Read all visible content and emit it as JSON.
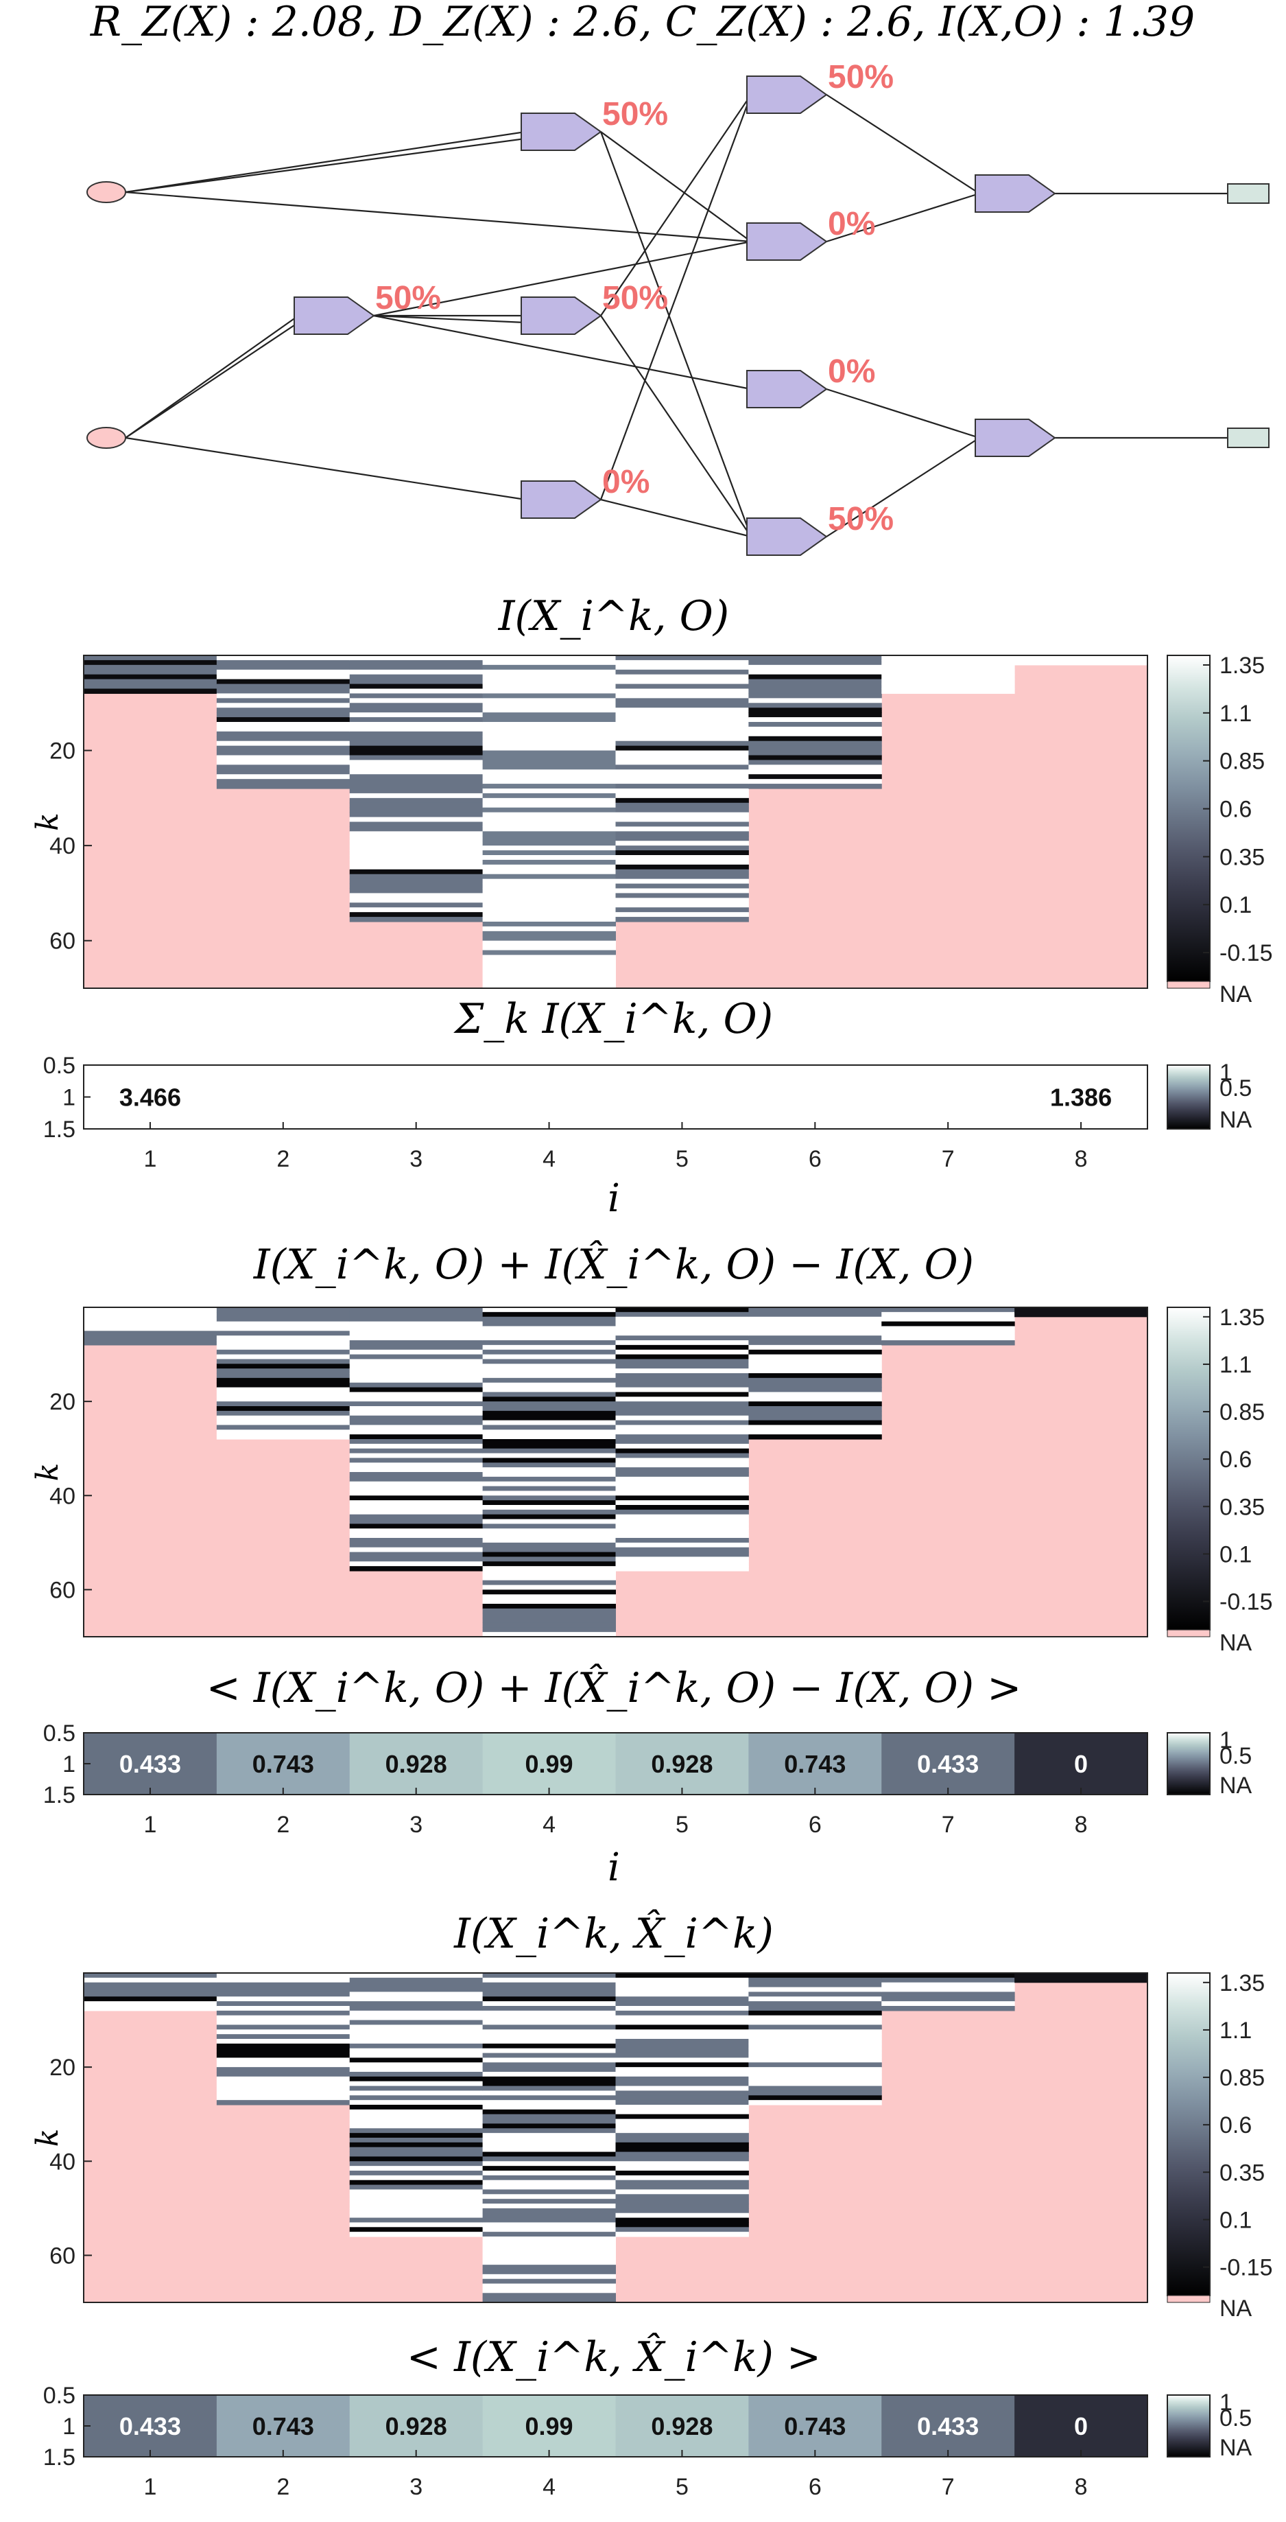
{
  "colors": {
    "na": "#fcc9c9",
    "node_fill": "#c0b8e4",
    "node_stroke": "#333333",
    "source_fill": "#fcc9c9",
    "output_fill": "#d6e6e0",
    "pct_label": "#f07070",
    "white": "#ffffff"
  },
  "diagram": {
    "title": "R_Z(X) : 2.08, D_Z(X) : 2.6, C_Z(X) : 2.6, I(X,O) : 1.39",
    "sources": [
      {
        "id": "s1"
      },
      {
        "id": "s2"
      }
    ],
    "gates": [
      {
        "id": "g1",
        "label": "50%"
      },
      {
        "id": "g2",
        "label": "50%"
      },
      {
        "id": "g3",
        "label": "50%"
      },
      {
        "id": "g4",
        "label": "0%"
      },
      {
        "id": "g5",
        "label": "50%"
      },
      {
        "id": "g6",
        "label": "0%"
      },
      {
        "id": "g7",
        "label": "0%"
      },
      {
        "id": "g8",
        "label": "50%"
      },
      {
        "id": "g9",
        "label": ""
      },
      {
        "id": "g10",
        "label": ""
      }
    ],
    "outputs": [
      {
        "id": "o1"
      },
      {
        "id": "o2"
      }
    ],
    "edges": [
      [
        "s1",
        "g1"
      ],
      [
        "s1",
        "g1"
      ],
      [
        "s1",
        "g6"
      ],
      [
        "s2",
        "g2"
      ],
      [
        "s2",
        "g2"
      ],
      [
        "s2",
        "g4"
      ],
      [
        "g2",
        "g3"
      ],
      [
        "g2",
        "g3"
      ],
      [
        "g2",
        "g7"
      ],
      [
        "g2",
        "g6"
      ],
      [
        "g1",
        "g6"
      ],
      [
        "g1",
        "g8"
      ],
      [
        "g3",
        "g5"
      ],
      [
        "g3",
        "g8"
      ],
      [
        "g4",
        "g5"
      ],
      [
        "g4",
        "g8"
      ],
      [
        "g5",
        "g9"
      ],
      [
        "g6",
        "g9"
      ],
      [
        "g7",
        "g10"
      ],
      [
        "g8",
        "g10"
      ],
      [
        "g9",
        "o1"
      ],
      [
        "g10",
        "o2"
      ]
    ]
  },
  "chart_data": [
    {
      "type": "heatmap",
      "title": "I(X_i^k, O)",
      "xlabel": "",
      "ylabel": "k",
      "x": [
        1,
        2,
        3,
        4,
        5,
        6,
        7,
        8
      ],
      "y_ticks": [
        20,
        40,
        60
      ],
      "ylim": [
        0,
        70
      ],
      "column_lengths": [
        8,
        28,
        56,
        70,
        56,
        28,
        8,
        2
      ],
      "colorbar": {
        "ticks": [
          "1.35",
          "1.1",
          "0.85",
          "0.6",
          "0.35",
          "0.1",
          "-0.15"
        ],
        "na_label": "NA",
        "range": [
          -0.3,
          1.4
        ]
      }
    },
    {
      "type": "heatmap",
      "title": "Σ_k I(X_i^k, O)",
      "xlabel": "i",
      "y_ticks": [
        "0.5",
        "1",
        "1.5"
      ],
      "x": [
        1,
        2,
        3,
        4,
        5,
        6,
        7,
        8
      ],
      "values": [
        3.466,
        null,
        null,
        null,
        null,
        null,
        null,
        1.386
      ],
      "cell_labels": [
        "3.466",
        "",
        "",
        "",
        "",
        "",
        "",
        "1.386"
      ],
      "colorbar": {
        "ticks": [
          "1",
          "0.5"
        ],
        "na_label": "NA"
      }
    },
    {
      "type": "heatmap",
      "title": "I(X_i^k, O) + I(X̂_i^k, O) − I(X, O)",
      "xlabel": "",
      "ylabel": "k",
      "x": [
        1,
        2,
        3,
        4,
        5,
        6,
        7,
        8
      ],
      "y_ticks": [
        20,
        40,
        60
      ],
      "ylim": [
        0,
        70
      ],
      "column_lengths": [
        8,
        28,
        56,
        70,
        56,
        28,
        8,
        2
      ],
      "colorbar": {
        "ticks": [
          "1.35",
          "1.1",
          "0.85",
          "0.6",
          "0.35",
          "0.1",
          "-0.15"
        ],
        "na_label": "NA",
        "range": [
          -0.3,
          1.4
        ]
      }
    },
    {
      "type": "heatmap",
      "title": "< I(X_i^k, O) + I(X̂_i^k, O) − I(X, O) >",
      "xlabel": "i",
      "y_ticks": [
        "0.5",
        "1",
        "1.5"
      ],
      "x": [
        1,
        2,
        3,
        4,
        5,
        6,
        7,
        8
      ],
      "values": [
        0.433,
        0.743,
        0.928,
        0.99,
        0.928,
        0.743,
        0.433,
        0
      ],
      "cell_labels": [
        "0.433",
        "0.743",
        "0.928",
        "0.99",
        "0.928",
        "0.743",
        "0.433",
        "0"
      ],
      "colorbar": {
        "ticks": [
          "1",
          "0.5"
        ],
        "na_label": "NA"
      }
    },
    {
      "type": "heatmap",
      "title": "I(X_i^k, X̂_i^k)",
      "xlabel": "",
      "ylabel": "k",
      "x": [
        1,
        2,
        3,
        4,
        5,
        6,
        7,
        8
      ],
      "y_ticks": [
        20,
        40,
        60
      ],
      "ylim": [
        0,
        70
      ],
      "column_lengths": [
        8,
        28,
        56,
        70,
        56,
        28,
        8,
        2
      ],
      "colorbar": {
        "ticks": [
          "1.35",
          "1.1",
          "0.85",
          "0.6",
          "0.35",
          "0.1",
          "-0.15"
        ],
        "na_label": "NA",
        "range": [
          -0.3,
          1.4
        ]
      }
    },
    {
      "type": "heatmap",
      "title": "< I(X_i^k, X̂_i^k) >",
      "xlabel": "",
      "ylabel": "",
      "y_ticks": [
        "0.5",
        "1",
        "1.5"
      ],
      "x": [
        1,
        2,
        3,
        4,
        5,
        6,
        7,
        8
      ],
      "values": [
        0.433,
        0.743,
        0.928,
        0.99,
        0.928,
        0.743,
        0.433,
        0
      ],
      "cell_labels": [
        "0.433",
        "0.743",
        "0.928",
        "0.99",
        "0.928",
        "0.743",
        "0.433",
        "0"
      ],
      "colorbar": {
        "ticks": [
          "1",
          "0.5"
        ],
        "na_label": "NA"
      }
    }
  ]
}
